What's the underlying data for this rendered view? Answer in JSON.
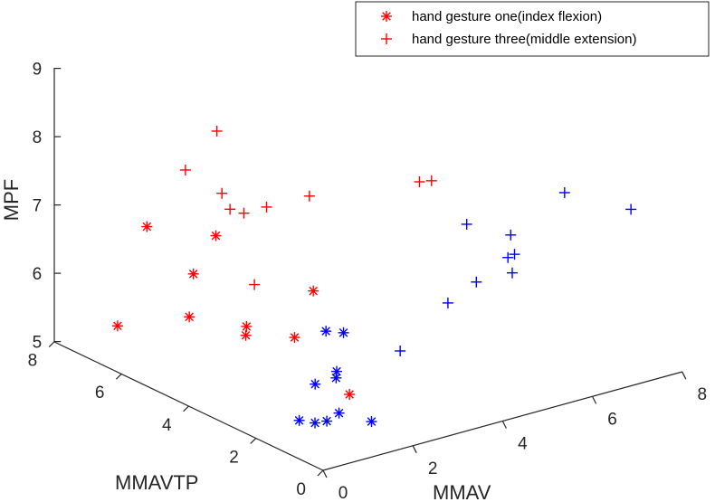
{
  "chart_data": {
    "type": "scatter",
    "projection": "3d",
    "xlabel": "MMAV",
    "ylabel": "MMAVTP",
    "zlabel": "MPF",
    "xlim": [
      0,
      8
    ],
    "ylim": [
      0,
      8
    ],
    "zlim": [
      5,
      9
    ],
    "xticks": [
      "0",
      "2",
      "4",
      "6",
      "8"
    ],
    "yticks": [
      "0",
      "2",
      "4",
      "6",
      "8"
    ],
    "zticks": [
      "5",
      "6",
      "7",
      "8",
      "9"
    ],
    "grid": false,
    "legend": {
      "position": "top-right",
      "entries": [
        {
          "label": "hand gesture one(index flexion)",
          "marker": "asterisk",
          "color": "#ff0000"
        },
        {
          "label": "hand gesture three(middle extension)",
          "marker": "plus",
          "color": "#ff0000"
        }
      ]
    },
    "series": [
      {
        "name": "hand gesture one(index flexion)",
        "marker": "asterisk",
        "color": "#ff0000",
        "points": [
          [
            0.53,
            6.83,
            5.41
          ],
          [
            0.52,
            4.68,
            6.05
          ],
          [
            0.75,
            6.25,
            6.96
          ],
          [
            0.88,
            5.04,
            6.53
          ],
          [
            1.3,
            4.04,
            5.79
          ],
          [
            1.33,
            4.06,
            5.91
          ],
          [
            1.53,
            1.26,
            5.54
          ],
          [
            1.44,
            5.12,
            6.97
          ],
          [
            1.99,
            3.51,
            5.76
          ],
          [
            2.46,
            3.58,
            6.34
          ]
        ]
      },
      {
        "name": "hand gesture three(middle extension)",
        "marker": "plus",
        "color": "#ff0000",
        "points": [
          [
            1.41,
            3.93,
            6.54
          ],
          [
            1.84,
            6.56,
            7.52
          ],
          [
            1.83,
            5.46,
            7.44
          ],
          [
            2.16,
            5.66,
            7.1
          ],
          [
            2.2,
            5.3,
            7.12
          ],
          [
            2.42,
            4.92,
            7.26
          ],
          [
            2.87,
            7.0,
            7.8
          ],
          [
            3.15,
            4.62,
            7.36
          ],
          [
            4.87,
            3.64,
            7.49
          ],
          [
            5.01,
            3.47,
            7.52
          ]
        ]
      },
      {
        "marker": "asterisk",
        "color": "#0000ff",
        "points": [
          [
            0.41,
            1.26,
            5.36
          ],
          [
            0.56,
            0.99,
            5.36
          ],
          [
            1.34,
            0.35,
            5.39
          ],
          [
            0.78,
            1.28,
            5.82
          ],
          [
            0.93,
            0.77,
            5.49
          ],
          [
            1.47,
            1.88,
            6.33
          ],
          [
            1.12,
            1.11,
            5.89
          ],
          [
            1.32,
            1.36,
            5.89
          ],
          [
            0.8,
            0.96,
            5.35
          ],
          [
            1.33,
            1.17,
            6.5
          ]
        ]
      },
      {
        "marker": "plus",
        "color": "#0000ff",
        "points": [
          [
            2.3,
            0.78,
            6.15
          ],
          [
            4.89,
            2.26,
            7.19
          ],
          [
            3.73,
            1.27,
            6.48
          ],
          [
            4.61,
            1.6,
            6.55
          ],
          [
            5.68,
            2.09,
            6.6
          ],
          [
            5.66,
            1.98,
            6.96
          ],
          [
            5.41,
            1.6,
            6.54
          ],
          [
            7.01,
            2.18,
            7.29
          ],
          [
            7.8,
            1.26,
            7.12
          ],
          [
            5.85,
            2.12,
            6.61
          ]
        ]
      }
    ]
  }
}
